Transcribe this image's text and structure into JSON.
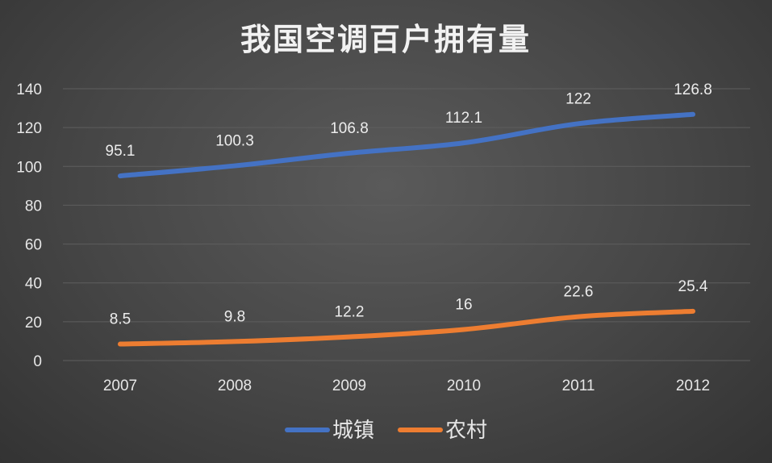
{
  "chart_data": {
    "type": "line",
    "title": "我国空调百户拥有量",
    "categories": [
      "2007",
      "2008",
      "2009",
      "2010",
      "2011",
      "2012"
    ],
    "ylim": [
      0,
      140
    ],
    "yticks": [
      0,
      20,
      40,
      60,
      80,
      100,
      120,
      140
    ],
    "grid": true,
    "legend_position": "bottom",
    "series": [
      {
        "name": "城镇",
        "color": "#4472C4",
        "values": [
          95.1,
          100.3,
          106.8,
          112.1,
          122,
          126.8
        ],
        "labels": [
          "95.1",
          "100.3",
          "106.8",
          "112.1",
          "122",
          "126.8"
        ]
      },
      {
        "name": "农村",
        "color": "#ED7D31",
        "values": [
          8.5,
          9.8,
          12.2,
          16,
          22.6,
          25.4
        ],
        "labels": [
          "8.5",
          "9.8",
          "12.2",
          "16",
          "22.6",
          "25.4"
        ]
      }
    ]
  }
}
